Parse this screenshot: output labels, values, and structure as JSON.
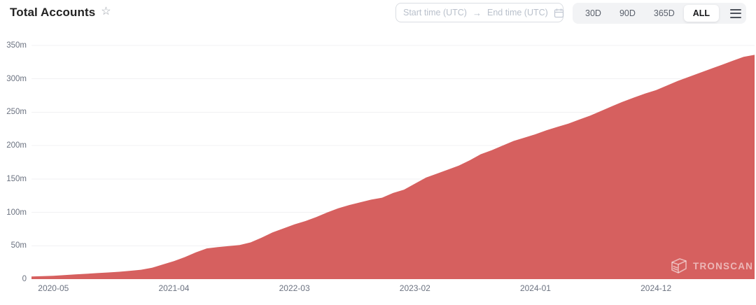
{
  "header": {
    "title": "Total Accounts",
    "star_icon": "☆",
    "date_range": {
      "start_placeholder": "Start time (UTC)",
      "arrow": "→",
      "end_placeholder": "End time (UTC)",
      "calendar_icon": "calendar"
    },
    "range_buttons": [
      {
        "label": "30D",
        "active": false
      },
      {
        "label": "90D",
        "active": false
      },
      {
        "label": "365D",
        "active": false
      },
      {
        "label": "ALL",
        "active": true
      }
    ]
  },
  "watermark": {
    "text": "TRONSCAN"
  },
  "colors": {
    "area_fill": "#d6605f",
    "gridline": "#f1f1f3",
    "axis_text": "#6b7280",
    "watermark": "rgba(255,255,255,0.55)"
  },
  "chart_data": {
    "type": "area",
    "title": "Total Accounts",
    "unit": "millions of accounts",
    "grid": true,
    "legend": false,
    "ylim": [
      0,
      350
    ],
    "yticks": [
      0,
      50,
      100,
      150,
      200,
      250,
      300,
      350
    ],
    "ytick_labels": [
      "0",
      "50m",
      "100m",
      "150m",
      "200m",
      "250m",
      "300m",
      "350m"
    ],
    "xtick_labels": [
      "2020-05",
      "2021-04",
      "2022-03",
      "2023-02",
      "2024-01",
      "2024-12"
    ],
    "x": [
      "2020-03",
      "2020-04",
      "2020-05",
      "2020-06",
      "2020-07",
      "2020-08",
      "2020-09",
      "2020-10",
      "2020-11",
      "2020-12",
      "2021-01",
      "2021-02",
      "2021-03",
      "2021-04",
      "2021-05",
      "2021-06",
      "2021-07",
      "2021-08",
      "2021-09",
      "2021-10",
      "2021-11",
      "2021-12",
      "2022-01",
      "2022-02",
      "2022-03",
      "2022-04",
      "2022-05",
      "2022-06",
      "2022-07",
      "2022-08",
      "2022-09",
      "2022-10",
      "2022-11",
      "2022-12",
      "2023-01",
      "2023-02",
      "2023-03",
      "2023-04",
      "2023-05",
      "2023-06",
      "2023-07",
      "2023-08",
      "2023-09",
      "2023-10",
      "2023-11",
      "2023-12",
      "2024-01",
      "2024-02",
      "2024-03",
      "2024-04",
      "2024-05",
      "2024-06",
      "2024-07",
      "2024-08",
      "2024-09",
      "2024-10",
      "2024-11",
      "2024-12",
      "2025-01",
      "2025-02",
      "2025-03",
      "2025-04",
      "2025-05",
      "2025-06",
      "2025-07",
      "2025-08",
      "2025-09"
    ],
    "values": [
      4,
      4.5,
      5,
      6,
      7,
      8,
      9,
      10,
      11,
      12.5,
      14,
      17,
      22,
      27,
      33,
      40,
      46,
      48,
      49.5,
      51,
      55,
      62,
      70,
      76,
      82,
      87,
      93,
      100,
      106,
      111,
      115,
      119,
      122,
      129,
      134,
      143,
      152,
      158,
      164,
      170,
      178,
      187,
      193,
      200,
      207,
      212,
      217,
      223,
      228,
      233,
      239,
      245,
      252,
      259,
      266,
      272,
      278,
      283,
      290,
      297,
      303,
      309,
      315,
      321,
      327,
      333,
      336
    ]
  }
}
